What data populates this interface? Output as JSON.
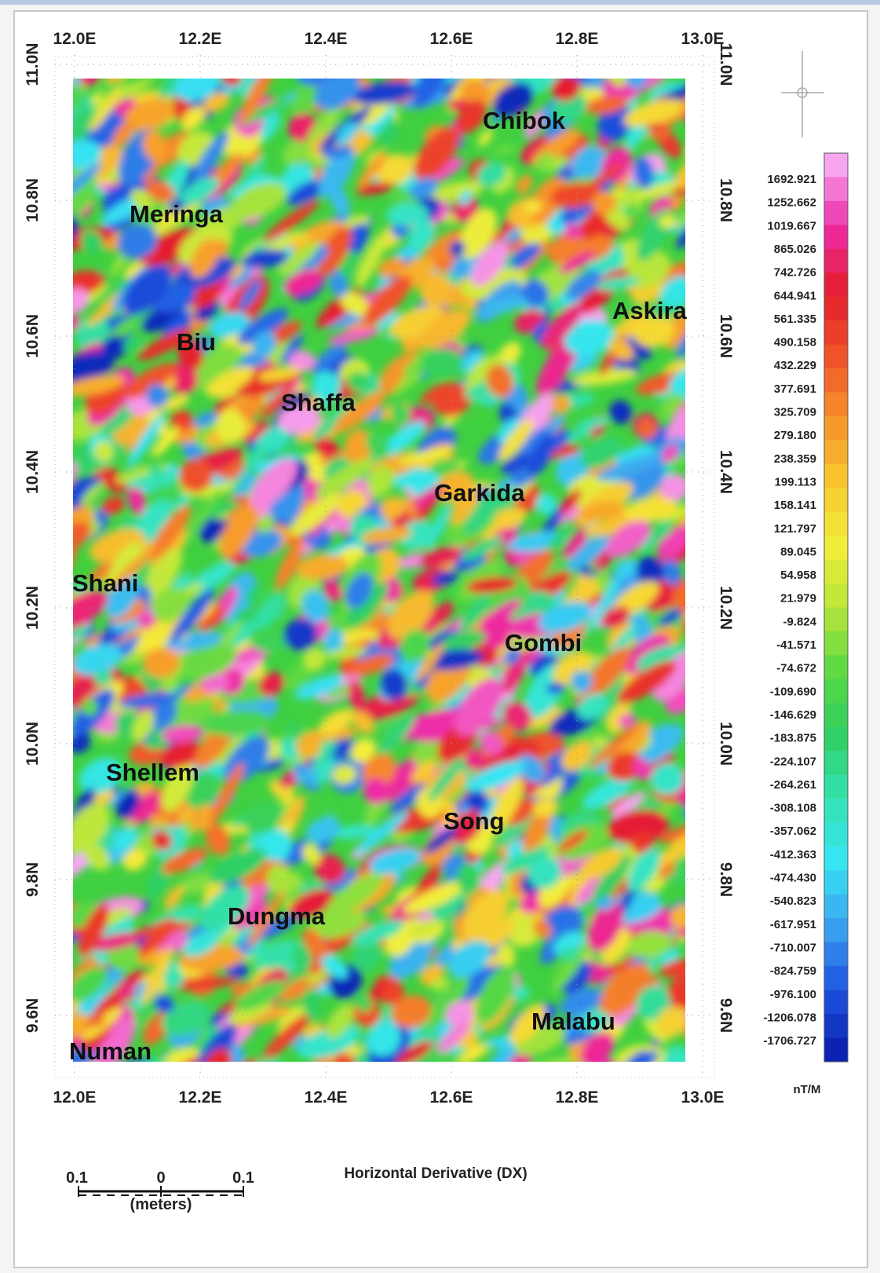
{
  "map": {
    "longitude_ticks": [
      "12.0E",
      "12.2E",
      "12.4E",
      "12.6E",
      "12.8E",
      "13.0E"
    ],
    "latitude_ticks": [
      "11.0N",
      "10.8N",
      "10.6N",
      "10.4N",
      "10.2N",
      "10.0N",
      "9.8N",
      "9.6N"
    ],
    "places": [
      "Chibok",
      "Meringa",
      "Askira",
      "Biu",
      "Shaffa",
      "Garkida",
      "Shani",
      "Gombi",
      "Shellem",
      "Song",
      "Dungma",
      "Malabu",
      "Numan"
    ],
    "title": "Horizontal Derivative (DX)",
    "color_legend": {
      "labels": [
        "1692.921",
        "1252.662",
        "1019.667",
        "865.026",
        "742.726",
        "644.941",
        "561.335",
        "490.158",
        "432.229",
        "377.691",
        "325.709",
        "279.180",
        "238.359",
        "199.113",
        "158.141",
        "121.797",
        "89.045",
        "54.958",
        "21.979",
        "-9.824",
        "-41.571",
        "-74.672",
        "-109.690",
        "-146.629",
        "-183.875",
        "-224.107",
        "-264.261",
        "-308.108",
        "-357.062",
        "-412.363",
        "-474.430",
        "-540.823",
        "-617.951",
        "-710.007",
        "-824.759",
        "-976.100",
        "-1206.078",
        "-1706.727"
      ],
      "unit": "nT/M"
    },
    "scale_bar": {
      "labels": [
        "0.1",
        "0",
        "0.1"
      ],
      "unit": "(meters)"
    }
  }
}
